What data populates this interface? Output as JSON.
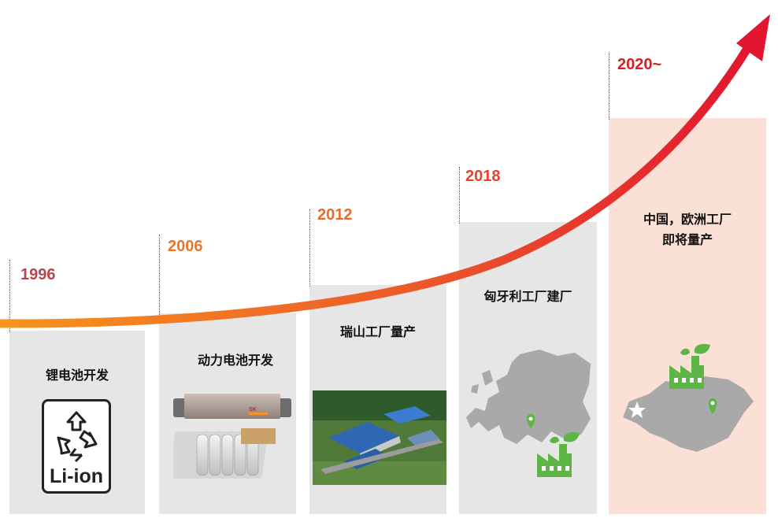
{
  "milestones": [
    {
      "year": "1996",
      "year_color": "#b5474f",
      "caption_lines": [
        "锂电池开发"
      ]
    },
    {
      "year": "2006",
      "year_color": "#e8762a",
      "caption_lines": [
        "动力电池开发"
      ]
    },
    {
      "year": "2012",
      "year_color": "#ea6a2e",
      "caption_lines": [
        "瑞山工厂量产"
      ]
    },
    {
      "year": "2018",
      "year_color": "#e6402f",
      "caption_lines": [
        "匈牙利工厂建厂"
      ]
    },
    {
      "year": "2020~",
      "year_color": "#d81f26",
      "caption_lines": [
        "中国，欧洲工厂",
        "即将量产"
      ]
    }
  ],
  "liion_label": "Li-ion",
  "battery_logo_text": "SK",
  "icons": [
    "recycle-icon",
    "battery-cell-icon",
    "factory-photo",
    "europe-map-icon",
    "green-factory-icon",
    "map-pin-icon",
    "china-map-icon"
  ],
  "colors": {
    "panel": "#e6e6e6",
    "panel_highlight": "#fbe0d6",
    "arrow_start": "#f7941d",
    "arrow_end": "#e2162f",
    "eco_green": "#5cb545",
    "map_gray": "#a9a9a9"
  }
}
